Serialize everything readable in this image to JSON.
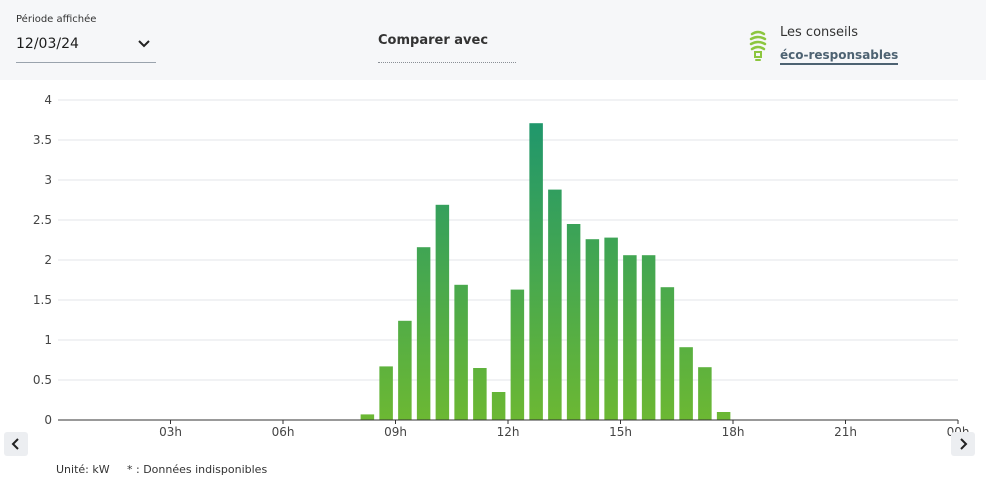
{
  "period": {
    "label": "Période affichée",
    "value": "12/03/24"
  },
  "compare": {
    "label": "Comparer avec",
    "value": ""
  },
  "tips": {
    "label": "Les conseils",
    "link": "éco-responsables",
    "icon": "lightbulb-icon"
  },
  "footer": {
    "unit": "Unité: kW",
    "note": "* : Données indisponibles"
  },
  "colors": {
    "bar_top": "#1a9470",
    "bar_bottom": "#6cb833",
    "grid": "#e3e5e8",
    "topbar": "#f6f7f9"
  },
  "chart_data": {
    "type": "bar",
    "title": "",
    "xlabel": "",
    "ylabel": "",
    "ylim": [
      0,
      4
    ],
    "y_ticks": [
      "0",
      "0.5",
      "1",
      "1.5",
      "2",
      "2.5",
      "3",
      "3.5",
      "4"
    ],
    "x_ticks": [
      "03h",
      "06h",
      "09h",
      "12h",
      "15h",
      "18h",
      "21h",
      "00h"
    ],
    "x_unit": "hours",
    "grid": true,
    "bars": [
      {
        "x": 8.0,
        "value": 0.07
      },
      {
        "x": 8.5,
        "value": 0.67
      },
      {
        "x": 9.0,
        "value": 1.24
      },
      {
        "x": 9.5,
        "value": 2.16
      },
      {
        "x": 10.0,
        "value": 2.69
      },
      {
        "x": 10.5,
        "value": 1.69
      },
      {
        "x": 11.0,
        "value": 0.65
      },
      {
        "x": 11.5,
        "value": 0.35
      },
      {
        "x": 12.0,
        "value": 1.63
      },
      {
        "x": 12.5,
        "value": 3.71
      },
      {
        "x": 13.0,
        "value": 2.88
      },
      {
        "x": 13.5,
        "value": 2.45
      },
      {
        "x": 14.0,
        "value": 2.26
      },
      {
        "x": 14.5,
        "value": 2.28
      },
      {
        "x": 15.0,
        "value": 2.06
      },
      {
        "x": 15.5,
        "value": 2.06
      },
      {
        "x": 16.0,
        "value": 1.66
      },
      {
        "x": 16.5,
        "value": 0.91
      },
      {
        "x": 17.0,
        "value": 0.66
      },
      {
        "x": 17.5,
        "value": 0.1
      }
    ]
  }
}
